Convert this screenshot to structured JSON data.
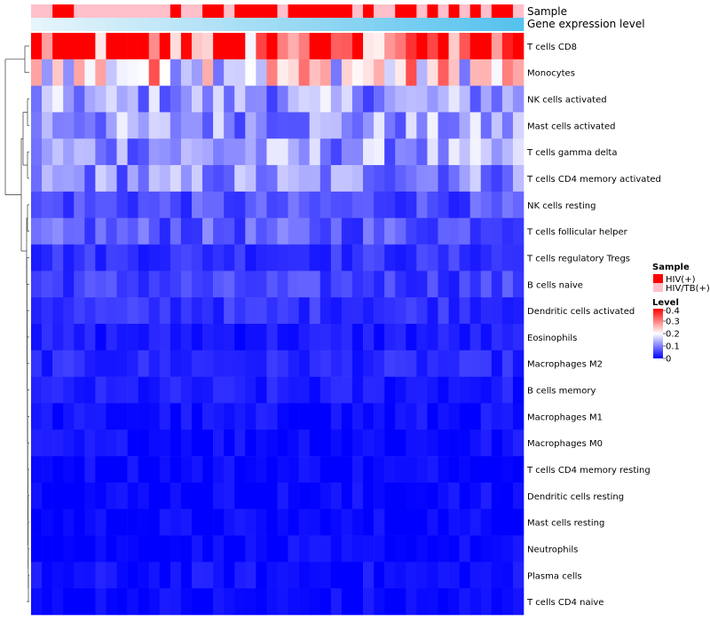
{
  "chart_data": {
    "type": "heatmap",
    "top_annotations": [
      {
        "name": "Sample"
      },
      {
        "name": "Gene expression level"
      }
    ],
    "rows": [
      "T cells CD8",
      "Monocytes",
      "NK cells activated",
      "Mast cells activated",
      "T cells gamma delta",
      "T cells CD4 memory activated",
      "NK cells resting",
      "T cells follicular helper",
      "T cells regulatory  Tregs",
      "B cells naive",
      "Dendritic cells activated",
      "Eosinophils",
      "Macrophages M2",
      "B cells memory",
      "Macrophages M1",
      "Macrophages M0",
      "T cells CD4 memory resting",
      "Dendritic cells resting",
      "Mast cells resting",
      "Neutrophils",
      "Plasma cells",
      "T cells CD4 naive"
    ],
    "n_columns": 46,
    "sample_groups": [
      "HIV(+)",
      "HIV/TB(+)"
    ],
    "sample_assignment": [
      "HIV/TB(+)",
      "HIV/TB(+)",
      "HIV(+)",
      "HIV(+)",
      "HIV/TB(+)",
      "HIV/TB(+)",
      "HIV/TB(+)",
      "HIV/TB(+)",
      "HIV/TB(+)",
      "HIV/TB(+)",
      "HIV/TB(+)",
      "HIV/TB(+)",
      "HIV/TB(+)",
      "HIV(+)",
      "HIV/TB(+)",
      "HIV/TB(+)",
      "HIV(+)",
      "HIV(+)",
      "HIV/TB(+)",
      "HIV(+)",
      "HIV(+)",
      "HIV(+)",
      "HIV(+)",
      "HIV/TB(+)",
      "HIV(+)",
      "HIV(+)",
      "HIV(+)",
      "HIV(+)",
      "HIV(+)",
      "HIV(+)",
      "HIV/TB(+)",
      "HIV(+)",
      "HIV/TB(+)",
      "HIV/TB(+)",
      "HIV(+)",
      "HIV(+)",
      "HIV/TB(+)",
      "HIV(+)",
      "HIV/TB(+)",
      "HIV(+)",
      "HIV/TB(+)",
      "HIV(+)",
      "HIV/TB(+)",
      "HIV(+)",
      "HIV(+)",
      "HIV/TB(+)"
    ],
    "row_level_estimates": [
      0.36,
      0.22,
      0.12,
      0.12,
      0.12,
      0.11,
      0.06,
      0.07,
      0.04,
      0.05,
      0.04,
      0.02,
      0.03,
      0.02,
      0.01,
      0.01,
      0.005,
      0.005,
      0.003,
      0.002,
      0.01,
      0.005
    ],
    "legend": {
      "sample_title": "Sample",
      "level_title": "Level",
      "level_ticks": [
        "0.4",
        "0.3",
        "0.2",
        "0.1",
        "0"
      ],
      "level_range": [
        0,
        0.4
      ]
    },
    "colors": {
      "low": "#0000ff",
      "mid": "#ffffff",
      "high": "#ff0000",
      "hiv": "#ff0000",
      "hivtb": "#ffc0cb",
      "expr_start": "#e6f4fb",
      "expr_end": "#56c2ee"
    }
  }
}
